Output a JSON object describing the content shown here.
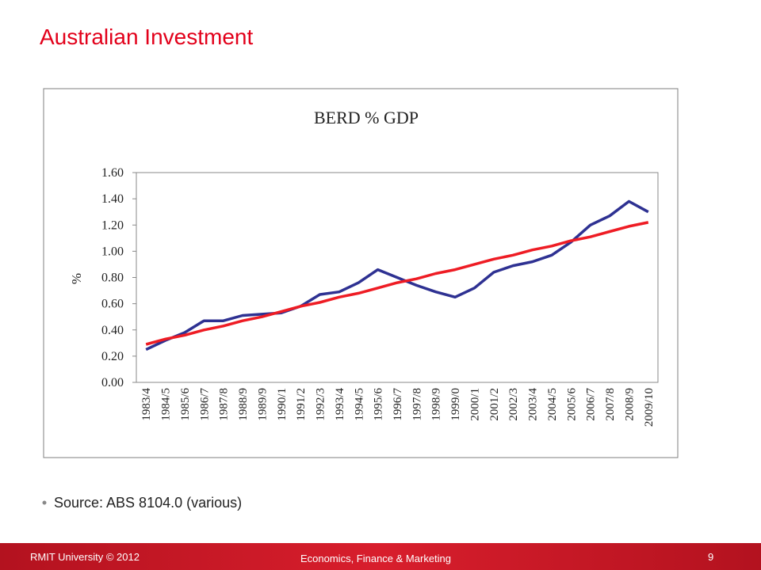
{
  "slide": {
    "title": "Australian Investment",
    "bullet": "Source: ABS 8104.0 (various)",
    "footer_left": "RMIT University © 2012",
    "footer_center": "Economics, Finance & Marketing",
    "page_number": "9"
  },
  "chart_data": {
    "type": "line",
    "title": "BERD % GDP",
    "ylabel": "%",
    "categories": [
      "1983/4",
      "1984/5",
      "1985/6",
      "1986/7",
      "1987/8",
      "1988/9",
      "1989/9",
      "1990/1",
      "1991/2",
      "1992/3",
      "1993/4",
      "1994/5",
      "1995/6",
      "1996/7",
      "1997/8",
      "1998/9",
      "1999/0",
      "2000/1",
      "2001/2",
      "2002/3",
      "2003/4",
      "2004/5",
      "2005/6",
      "2006/7",
      "2007/8",
      "2008/9",
      "2009/10"
    ],
    "series": [
      {
        "color": "#2e3192",
        "values": [
          0.25,
          0.32,
          0.38,
          0.47,
          0.47,
          0.51,
          0.52,
          0.53,
          0.58,
          0.67,
          0.69,
          0.76,
          0.86,
          0.8,
          0.74,
          0.69,
          0.65,
          0.72,
          0.84,
          0.89,
          0.92,
          0.97,
          1.07,
          1.2,
          1.27,
          1.38,
          1.3
        ]
      },
      {
        "color": "#ee1c24",
        "values": [
          0.29,
          0.33,
          0.36,
          0.4,
          0.43,
          0.47,
          0.5,
          0.54,
          0.58,
          0.61,
          0.65,
          0.68,
          0.72,
          0.76,
          0.79,
          0.83,
          0.86,
          0.9,
          0.94,
          0.97,
          1.01,
          1.04,
          1.08,
          1.11,
          1.15,
          1.19,
          1.22
        ]
      }
    ],
    "ylim": [
      0,
      1.6
    ],
    "yticks": [
      {
        "value": 0,
        "label": "0.00"
      },
      {
        "value": 0.2,
        "label": "0.20"
      },
      {
        "value": 0.4,
        "label": "0.40"
      },
      {
        "value": 0.6,
        "label": "0.60"
      },
      {
        "value": 0.8,
        "label": "0.80"
      },
      {
        "value": 1,
        "label": "1.00"
      },
      {
        "value": 1.2,
        "label": "1.20"
      },
      {
        "value": 1.4,
        "label": "1.40"
      },
      {
        "value": 1.6,
        "label": "1.60"
      }
    ],
    "grid": false
  }
}
